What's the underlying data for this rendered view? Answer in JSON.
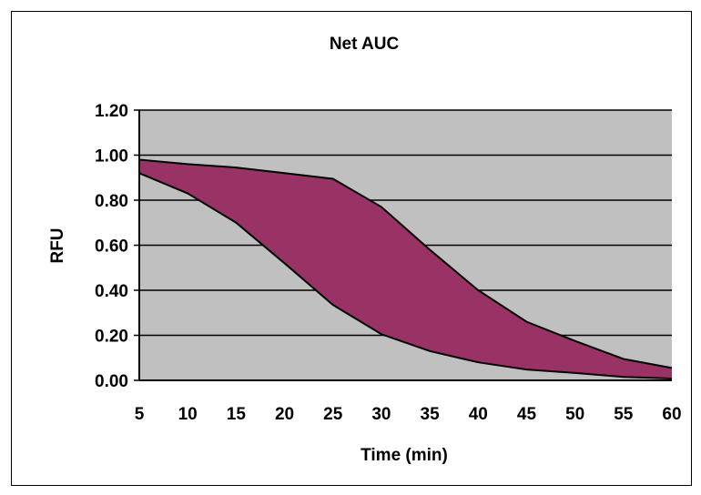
{
  "chart_data": {
    "type": "area",
    "title": "Net AUC",
    "xlabel": "Time (min)",
    "ylabel": "RFU",
    "x": [
      5,
      10,
      15,
      20,
      25,
      30,
      35,
      40,
      45,
      50,
      55,
      60
    ],
    "xticks": [
      "5",
      "10",
      "15",
      "20",
      "25",
      "30",
      "35",
      "40",
      "45",
      "50",
      "55",
      "60"
    ],
    "yticks": [
      "0.00",
      "0.20",
      "0.40",
      "0.60",
      "0.80",
      "1.00",
      "1.20"
    ],
    "ylim": [
      0,
      1.2
    ],
    "grid": true,
    "series": [
      {
        "values": [
          0.98,
          0.96,
          0.945,
          0.92,
          0.895,
          0.77,
          0.58,
          0.4,
          0.26,
          0.175,
          0.095,
          0.055
        ]
      },
      {
        "values": [
          0.92,
          0.83,
          0.7,
          0.52,
          0.335,
          0.205,
          0.13,
          0.08,
          0.048,
          0.033,
          0.015,
          0.008
        ]
      }
    ],
    "colors": {
      "fill": "#993366",
      "plot_bg": "#c0c0c0",
      "line": "#000000"
    }
  }
}
